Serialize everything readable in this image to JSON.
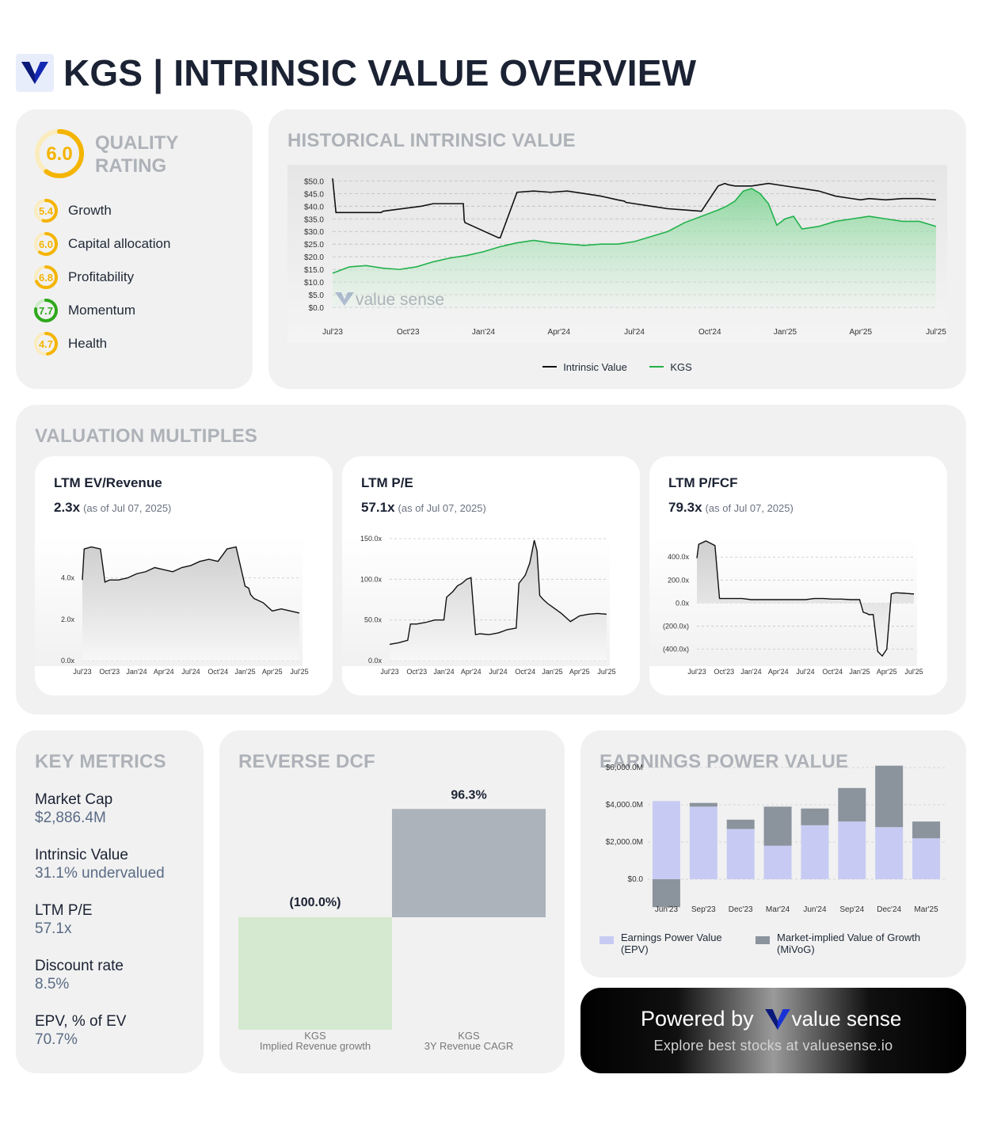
{
  "header": {
    "ticker_title": "KGS | INTRINSIC VALUE OVERVIEW"
  },
  "colors": {
    "brand": "#1428b4",
    "accent_green": "#22b14c",
    "gray_bar": "#8b939c",
    "epv_bar": "#c7cbf3",
    "yellow": "#f4b400",
    "green_ring": "#2fa81d"
  },
  "quality": {
    "title": "QUALITY RATING",
    "score": "6.0",
    "items": [
      {
        "label": "Growth",
        "score": "5.4",
        "color": "#f4b400",
        "fraction": 0.54
      },
      {
        "label": "Capital allocation",
        "score": "6.0",
        "color": "#f4b400",
        "fraction": 0.6
      },
      {
        "label": "Profitability",
        "score": "6.8",
        "color": "#f4b400",
        "fraction": 0.68
      },
      {
        "label": "Momentum",
        "score": "7.7",
        "color": "#2fa81d",
        "fraction": 0.77
      },
      {
        "label": "Health",
        "score": "4.7",
        "color": "#f4b400",
        "fraction": 0.47
      }
    ]
  },
  "historical": {
    "title": "HISTORICAL INTRINSIC VALUE",
    "watermark": "value sense",
    "legend": [
      "Intrinsic Value",
      "KGS"
    ]
  },
  "multiples": {
    "title": "VALUATION MULTIPLES",
    "cards": [
      {
        "title": "LTM EV/Revenue",
        "value": "2.3x",
        "asof": "(as of Jul 07, 2025)"
      },
      {
        "title": "LTM P/E",
        "value": "57.1x",
        "asof": "(as of Jul 07, 2025)"
      },
      {
        "title": "LTM P/FCF",
        "value": "79.3x",
        "asof": "(as of Jul 07, 2025)"
      }
    ]
  },
  "key_metrics": {
    "title": "KEY METRICS",
    "items": [
      {
        "label": "Market Cap",
        "value": "$2,886.4M"
      },
      {
        "label": "Intrinsic Value",
        "value": "31.1% undervalued"
      },
      {
        "label": "LTM P/E",
        "value": "57.1x"
      },
      {
        "label": "Discount rate",
        "value": "8.5%"
      },
      {
        "label": "EPV, % of EV",
        "value": "70.7%"
      }
    ]
  },
  "reverse_dcf": {
    "title": "REVERSE DCF",
    "bars": [
      {
        "label": "(100.0%)",
        "ticker": "KGS",
        "name": "Implied Revenue growth"
      },
      {
        "label": "96.3%",
        "ticker": "KGS",
        "name": "3Y Revenue CAGR"
      }
    ]
  },
  "epv": {
    "title": "EARNINGS POWER VALUE",
    "legend": [
      "Earnings Power Value (EPV)",
      "Market-implied Value of Growth (MiVoG)"
    ]
  },
  "powered": {
    "prefix": "Powered by",
    "brand": "value sense",
    "tagline": "Explore best stocks at valuesense.io"
  },
  "chart_data": [
    {
      "type": "line",
      "x_ticks": [
        "Jul'23",
        "Oct'23",
        "Jan'24",
        "Apr'24",
        "Jul'24",
        "Oct'24",
        "Jan'25",
        "Apr'25",
        "Jul'25"
      ],
      "y_ticks": [
        "$50.0",
        "$45.0",
        "$40.0",
        "$35.0",
        "$30.0",
        "$25.0",
        "$20.0",
        "$15.0",
        "$10.0",
        "$5.0",
        "$0.0"
      ],
      "ylim": [
        0,
        52
      ],
      "series": [
        {
          "name": "Intrinsic Value",
          "color": "#111111",
          "x": [
            0,
            0.2,
            0.5,
            2.9,
            3.0,
            5.3,
            6.0,
            6.2,
            7.8,
            7.85,
            7.9,
            9.9,
            10.0,
            11.0,
            12.0,
            13.0,
            14.0,
            15.0,
            16.0,
            17.0,
            17.4,
            17.5,
            18.0,
            19.0,
            20.0,
            21.0,
            22.0,
            23.0,
            23.4,
            23.6,
            24.0,
            25.0,
            26.0,
            27.0,
            28.0,
            29.0,
            30.0,
            31.0,
            31.5,
            32.0,
            33.0,
            34.0,
            35.0,
            36.0
          ],
          "y": [
            51,
            37.5,
            37.5,
            37.5,
            38,
            40,
            41,
            41,
            41,
            34.5,
            33.5,
            27.5,
            27.5,
            45.5,
            46,
            45.5,
            46,
            45,
            44,
            42.5,
            42,
            41.5,
            41,
            40,
            39,
            38.5,
            38,
            48,
            49,
            48.5,
            48,
            48,
            49,
            48,
            47,
            46,
            44,
            43,
            42.5,
            43,
            42.5,
            43,
            43,
            42.5
          ]
        },
        {
          "name": "KGS",
          "color": "#22b14c",
          "x": [
            0,
            1,
            2,
            3,
            4,
            5,
            6,
            7,
            8,
            9,
            10,
            11,
            12,
            13,
            14,
            15,
            16,
            17,
            18,
            19,
            20,
            21,
            22,
            23,
            23.5,
            24,
            24.5,
            25,
            25.5,
            26,
            26.5,
            27,
            27.5,
            28,
            29,
            30,
            31,
            32,
            33,
            34,
            35,
            36
          ],
          "y": [
            13.5,
            16,
            16.5,
            15.5,
            15,
            16,
            18,
            19.5,
            20.5,
            22,
            24,
            25.5,
            26.5,
            25.5,
            25,
            24.5,
            25,
            25,
            26,
            28,
            30,
            33.5,
            36,
            38.5,
            40,
            42,
            46,
            47,
            45,
            41,
            32.5,
            35,
            36,
            31,
            32,
            34,
            35,
            36,
            35,
            34,
            34,
            32
          ]
        }
      ]
    },
    {
      "type": "area",
      "title": "LTM EV/Revenue",
      "x_ticks": [
        "Jul'23",
        "Oct'23",
        "Jan'24",
        "Apr'24",
        "Jul'24",
        "Oct'24",
        "Jan'25",
        "Apr'25",
        "Jul'25"
      ],
      "y_ticks": [
        "4.0x",
        "2.0x",
        "0.0x"
      ],
      "ylim": [
        0,
        5.9
      ],
      "x": [
        0,
        0.2,
        1,
        2,
        2.5,
        3,
        4,
        5,
        6,
        7,
        8,
        9,
        10,
        11,
        12,
        13,
        14,
        15,
        16,
        17,
        18,
        18.4,
        18.6,
        19,
        20,
        21,
        22,
        23,
        24
      ],
      "values": [
        3.9,
        5.4,
        5.5,
        5.4,
        3.8,
        3.9,
        3.9,
        4.0,
        4.2,
        4.3,
        4.5,
        4.4,
        4.3,
        4.5,
        4.6,
        4.8,
        4.9,
        4.8,
        5.4,
        5.5,
        3.6,
        3.5,
        3.2,
        3.0,
        2.8,
        2.4,
        2.5,
        2.4,
        2.3
      ]
    },
    {
      "type": "area",
      "title": "LTM P/E",
      "x_ticks": [
        "Jul'23",
        "Oct'23",
        "Jan'24",
        "Apr'24",
        "Jul'24",
        "Oct'24",
        "Jan'25",
        "Apr'25",
        "Jul'25"
      ],
      "y_ticks": [
        "150.0x",
        "100.0x",
        "50.0x",
        "0.0x"
      ],
      "ylim": [
        0,
        150
      ],
      "x": [
        0,
        1,
        2,
        2.3,
        3,
        4,
        5,
        6,
        6.3,
        7,
        7.5,
        8,
        8.5,
        9,
        9.5,
        10,
        11,
        12,
        13,
        14,
        14.3,
        15,
        15.5,
        16,
        16.3,
        16.6,
        17,
        17.5,
        18,
        19,
        20,
        21,
        22,
        23,
        24
      ],
      "values": [
        20,
        22,
        25,
        45,
        45,
        47,
        50,
        50,
        78,
        85,
        92,
        95,
        100,
        102,
        32,
        33,
        32,
        34,
        38,
        40,
        95,
        105,
        120,
        148,
        135,
        80,
        75,
        70,
        66,
        58,
        48,
        55,
        57,
        58,
        57
      ]
    },
    {
      "type": "area",
      "title": "LTM P/FCF",
      "x_ticks": [
        "Jul'23",
        "Oct'23",
        "Jan'24",
        "Apr'24",
        "Jul'24",
        "Oct'24",
        "Jan'25",
        "Apr'25",
        "Jul'25"
      ],
      "y_ticks": [
        "400.0x",
        "200.0x",
        "0.0x",
        "(200.0x)",
        "(400.0x)"
      ],
      "ylim": [
        -500,
        560
      ],
      "x": [
        0,
        0.2,
        1,
        2,
        2.5,
        3,
        4,
        5,
        6,
        7,
        8,
        9,
        10,
        11,
        12,
        13,
        14,
        15,
        16,
        17,
        18,
        18.4,
        18.8,
        19,
        19.5,
        20,
        20.5,
        21,
        21.5,
        22,
        23,
        24
      ],
      "values": [
        390,
        510,
        540,
        500,
        40,
        40,
        40,
        40,
        30,
        30,
        30,
        30,
        30,
        30,
        30,
        40,
        40,
        35,
        35,
        30,
        30,
        -80,
        -90,
        -100,
        -100,
        -420,
        -460,
        -400,
        80,
        90,
        85,
        79
      ]
    },
    {
      "type": "bar",
      "title": "EARNINGS POWER VALUE",
      "categories": [
        "Jun'23",
        "Sep'23",
        "Dec'23",
        "Mar'24",
        "Jun'24",
        "Sep'24",
        "Dec'24",
        "Mar'25"
      ],
      "y_ticks": [
        "$6,000.0M",
        "$4,000.0M",
        "$2,000.0M",
        "$0.0"
      ],
      "ylim": [
        -1500,
        6500
      ],
      "series": [
        {
          "name": "Earnings Power Value (EPV)",
          "values": [
            4200,
            3900,
            2700,
            1800,
            2900,
            3100,
            2800,
            2200
          ]
        },
        {
          "name": "Market-implied Value of Growth (MiVoG)",
          "values": [
            -1500,
            200,
            500,
            2100,
            900,
            1800,
            3300,
            900
          ]
        }
      ]
    },
    {
      "type": "bar",
      "title": "REVERSE DCF",
      "categories": [
        "Implied Revenue growth",
        "3Y Revenue CAGR"
      ],
      "values": [
        -100.0,
        96.3
      ]
    }
  ]
}
